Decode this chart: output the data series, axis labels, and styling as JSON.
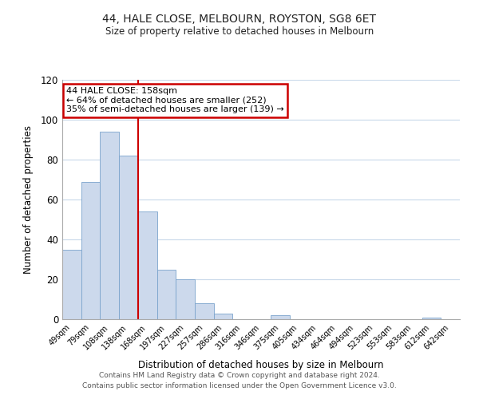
{
  "title": "44, HALE CLOSE, MELBOURN, ROYSTON, SG8 6ET",
  "subtitle": "Size of property relative to detached houses in Melbourn",
  "xlabel": "Distribution of detached houses by size in Melbourn",
  "ylabel": "Number of detached properties",
  "bar_labels": [
    "49sqm",
    "79sqm",
    "108sqm",
    "138sqm",
    "168sqm",
    "197sqm",
    "227sqm",
    "257sqm",
    "286sqm",
    "316sqm",
    "346sqm",
    "375sqm",
    "405sqm",
    "434sqm",
    "464sqm",
    "494sqm",
    "523sqm",
    "553sqm",
    "583sqm",
    "612sqm",
    "642sqm"
  ],
  "bar_values": [
    35,
    69,
    94,
    82,
    54,
    25,
    20,
    8,
    3,
    0,
    0,
    2,
    0,
    0,
    0,
    0,
    0,
    0,
    0,
    1,
    0
  ],
  "bar_color": "#ccd9ec",
  "bar_edge_color": "#7aa3cc",
  "red_line_x": 3.5,
  "ylim": [
    0,
    120
  ],
  "yticks": [
    0,
    20,
    40,
    60,
    80,
    100,
    120
  ],
  "annotation_title": "44 HALE CLOSE: 158sqm",
  "annotation_line1": "← 64% of detached houses are smaller (252)",
  "annotation_line2": "35% of semi-detached houses are larger (139) →",
  "annotation_box_color": "#ffffff",
  "annotation_box_edge_color": "#cc0000",
  "footer_line1": "Contains HM Land Registry data © Crown copyright and database right 2024.",
  "footer_line2": "Contains public sector information licensed under the Open Government Licence v3.0.",
  "grid_color": "#c8d8ea",
  "background_color": "#ffffff"
}
